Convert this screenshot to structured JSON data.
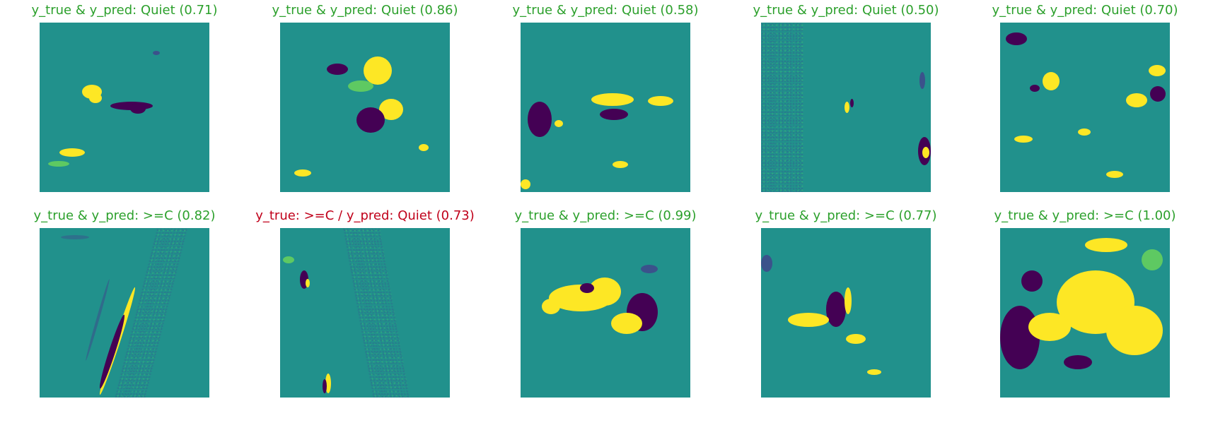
{
  "panels": [
    {
      "title": "y_true & y_pred: Quiet (0.71)",
      "status": "correct"
    },
    {
      "title": "y_true & y_pred: Quiet (0.86)",
      "status": "correct"
    },
    {
      "title": "y_true & y_pred: Quiet (0.58)",
      "status": "correct"
    },
    {
      "title": "y_true & y_pred: Quiet (0.50)",
      "status": "correct"
    },
    {
      "title": "y_true & y_pred: Quiet (0.70)",
      "status": "correct"
    },
    {
      "title": "y_true & y_pred: >=C (0.82)",
      "status": "correct"
    },
    {
      "title": "y_true: >=C / y_pred: Quiet (0.73)",
      "status": "wrong"
    },
    {
      "title": "y_true & y_pred: >=C (0.99)",
      "status": "correct"
    },
    {
      "title": "y_true & y_pred: >=C (0.77)",
      "status": "correct"
    },
    {
      "title": "y_true & y_pred: >=C (1.00)",
      "status": "correct"
    }
  ],
  "colors": {
    "correct": "#2ca02c",
    "wrong": "#c0001a",
    "background": "#21918c",
    "positive": "#fde725",
    "negative": "#440154"
  }
}
